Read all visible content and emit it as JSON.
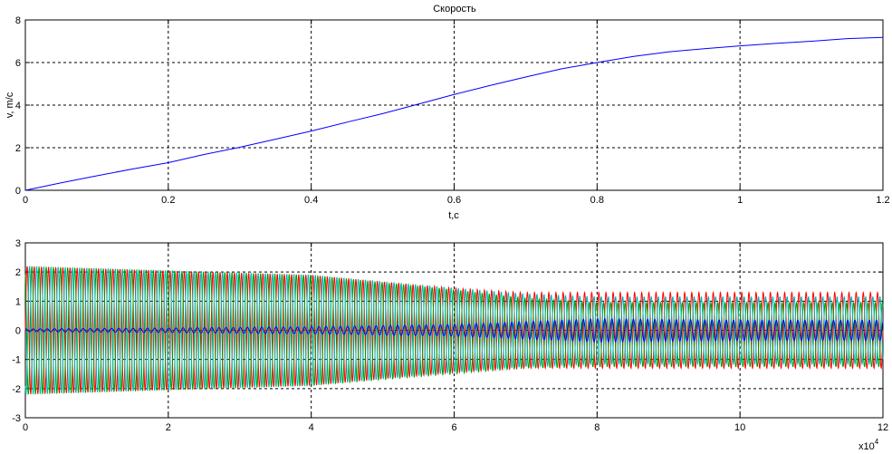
{
  "chart_data": [
    {
      "type": "line",
      "title": "Скорость",
      "xlabel": "t,c",
      "ylabel": "v, m/c",
      "xlim": [
        0,
        1.2
      ],
      "ylim": [
        0,
        8
      ],
      "grid": true,
      "xticks": [
        "0",
        "0.2",
        "0.4",
        "0.6",
        "0.8",
        "1",
        "1.2"
      ],
      "yticks": [
        "0",
        "2",
        "4",
        "6",
        "8"
      ],
      "series": [
        {
          "color": "#0000ff",
          "x": [
            0,
            0.05,
            0.1,
            0.15,
            0.2,
            0.25,
            0.3,
            0.35,
            0.4,
            0.45,
            0.5,
            0.55,
            0.6,
            0.65,
            0.7,
            0.75,
            0.8,
            0.85,
            0.9,
            0.95,
            1.0,
            1.05,
            1.1,
            1.15,
            1.2
          ],
          "y": [
            0,
            0.35,
            0.68,
            1.0,
            1.3,
            1.68,
            2.02,
            2.4,
            2.78,
            3.2,
            3.6,
            4.05,
            4.5,
            4.92,
            5.32,
            5.7,
            6.0,
            6.28,
            6.5,
            6.65,
            6.78,
            6.9,
            7.0,
            7.12,
            7.18
          ]
        }
      ]
    },
    {
      "type": "line",
      "title": "",
      "xlabel": "",
      "ylabel": "",
      "x_multiplier": "x10",
      "x_multiplier_exp": "4",
      "xlim": [
        0,
        12
      ],
      "ylim": [
        -3,
        3
      ],
      "grid": true,
      "xticks": [
        "0",
        "2",
        "4",
        "6",
        "8",
        "10",
        "12"
      ],
      "yticks": [
        "-3",
        "-2",
        "-1",
        "0",
        "1",
        "2",
        "3"
      ],
      "cycles": 120,
      "series": [
        {
          "color": "#ff0000",
          "phase_deg": 0,
          "envelope_x": [
            0,
            2,
            4,
            6,
            7,
            8,
            10,
            12
          ],
          "envelope_y": [
            2.2,
            2.05,
            1.9,
            1.45,
            1.3,
            1.3,
            1.3,
            1.3
          ],
          "offset_x": [
            0,
            2,
            4,
            6,
            7,
            8,
            10,
            12
          ],
          "offset_y": [
            0,
            0,
            0,
            0,
            0,
            0,
            0,
            0
          ]
        },
        {
          "color": "#009900",
          "phase_deg": 120,
          "envelope_x": [
            0,
            2,
            4,
            6,
            7,
            8,
            10,
            12
          ],
          "envelope_y": [
            2.2,
            2.05,
            1.9,
            1.45,
            1.2,
            1.1,
            1.1,
            1.1
          ],
          "offset_x": [
            0,
            2,
            4,
            6,
            7,
            8,
            10,
            12
          ],
          "offset_y": [
            0,
            0,
            0,
            -0.05,
            -0.1,
            -0.15,
            -0.15,
            -0.15
          ]
        },
        {
          "color": "#00b3b3",
          "phase_deg": 240,
          "envelope_x": [
            0,
            2,
            4,
            6,
            7,
            8,
            10,
            12
          ],
          "envelope_y": [
            2.2,
            2.05,
            1.9,
            1.45,
            1.25,
            1.15,
            1.15,
            1.15
          ],
          "offset_x": [
            0,
            2,
            4,
            6,
            7,
            8,
            10,
            12
          ],
          "offset_y": [
            0,
            0,
            0,
            0,
            0,
            0,
            0,
            0
          ]
        },
        {
          "color": "#0000ff",
          "phase_deg": 60,
          "envelope_x": [
            0,
            2,
            4,
            6,
            7,
            8,
            10,
            12
          ],
          "envelope_y": [
            0.05,
            0.08,
            0.12,
            0.2,
            0.3,
            0.4,
            0.35,
            0.35
          ],
          "offset_x": [
            0,
            2,
            4,
            6,
            7,
            8,
            10,
            12
          ],
          "offset_y": [
            0,
            0,
            0,
            0,
            0,
            0,
            0,
            0
          ]
        }
      ]
    }
  ]
}
